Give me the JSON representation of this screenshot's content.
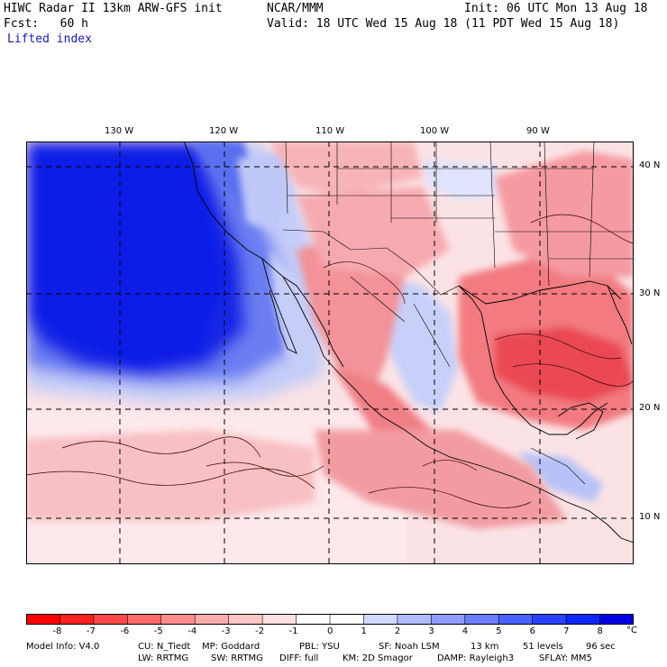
{
  "header": {
    "left_line1": "HIWC Radar II 13km ARW-GFS init",
    "center_line1": "NCAR/MMM",
    "right_line1": "Init: 06 UTC Mon 13 Aug 18",
    "left_line2": "Fcst:   60 h",
    "right_line2": "Valid: 18 UTC Wed 15 Aug 18 (11 PDT Wed 15 Aug 18)",
    "field_name": "Lifted index"
  },
  "map": {
    "lon_labels": [
      "130 W",
      "120 W",
      "110 W",
      "100 W",
      "90 W"
    ],
    "lat_labels": [
      "40 N",
      "30 N",
      "20 N",
      "10 N"
    ],
    "colors": {
      "deep_blue": "#0a1ee6",
      "mid_blue": "#5a6ef0",
      "light_blue": "#c8d0fa",
      "pale_pink": "#fbe0e2",
      "light_red": "#f7a8ac",
      "mid_red": "#f06a70",
      "strong_red": "#e63a40"
    }
  },
  "colorbar": {
    "ticks": [
      "-8",
      "-7",
      "-6",
      "-5",
      "-4",
      "-3",
      "-2",
      "-1",
      "0",
      "1",
      "2",
      "3",
      "4",
      "5",
      "6",
      "7",
      "8"
    ],
    "unit": "°C",
    "colors": [
      "#ff0000",
      "#ff2020",
      "#ff4848",
      "#ff6a6a",
      "#ff8c8c",
      "#ffacac",
      "#ffc6c6",
      "#ffe0e0",
      "#ffffff",
      "#ffffff",
      "#d2d8ff",
      "#b0baff",
      "#8e9cff",
      "#6c7eff",
      "#4a60ff",
      "#2842ff",
      "#0a28ff",
      "#0000e6"
    ]
  },
  "footer": {
    "line1_model": "Model Info: V4.0",
    "line1_cu": "CU: N_Tiedt",
    "line1_mp": "MP: Goddard",
    "line1_pbl": "PBL: YSU",
    "line1_sf": "SF: Noah LSM",
    "line1_res": "13 km",
    "line1_levels": "51 levels",
    "line1_dt": "96 sec",
    "line2_lw": "LW: RRTMG",
    "line2_sw": "SW: RRTMG",
    "line2_diff": "DIFF: full",
    "line2_km": "KM: 2D Smagor",
    "line2_damp": "DAMP: Rayleigh3",
    "line2_sflay": "SFLAY: MM5"
  }
}
